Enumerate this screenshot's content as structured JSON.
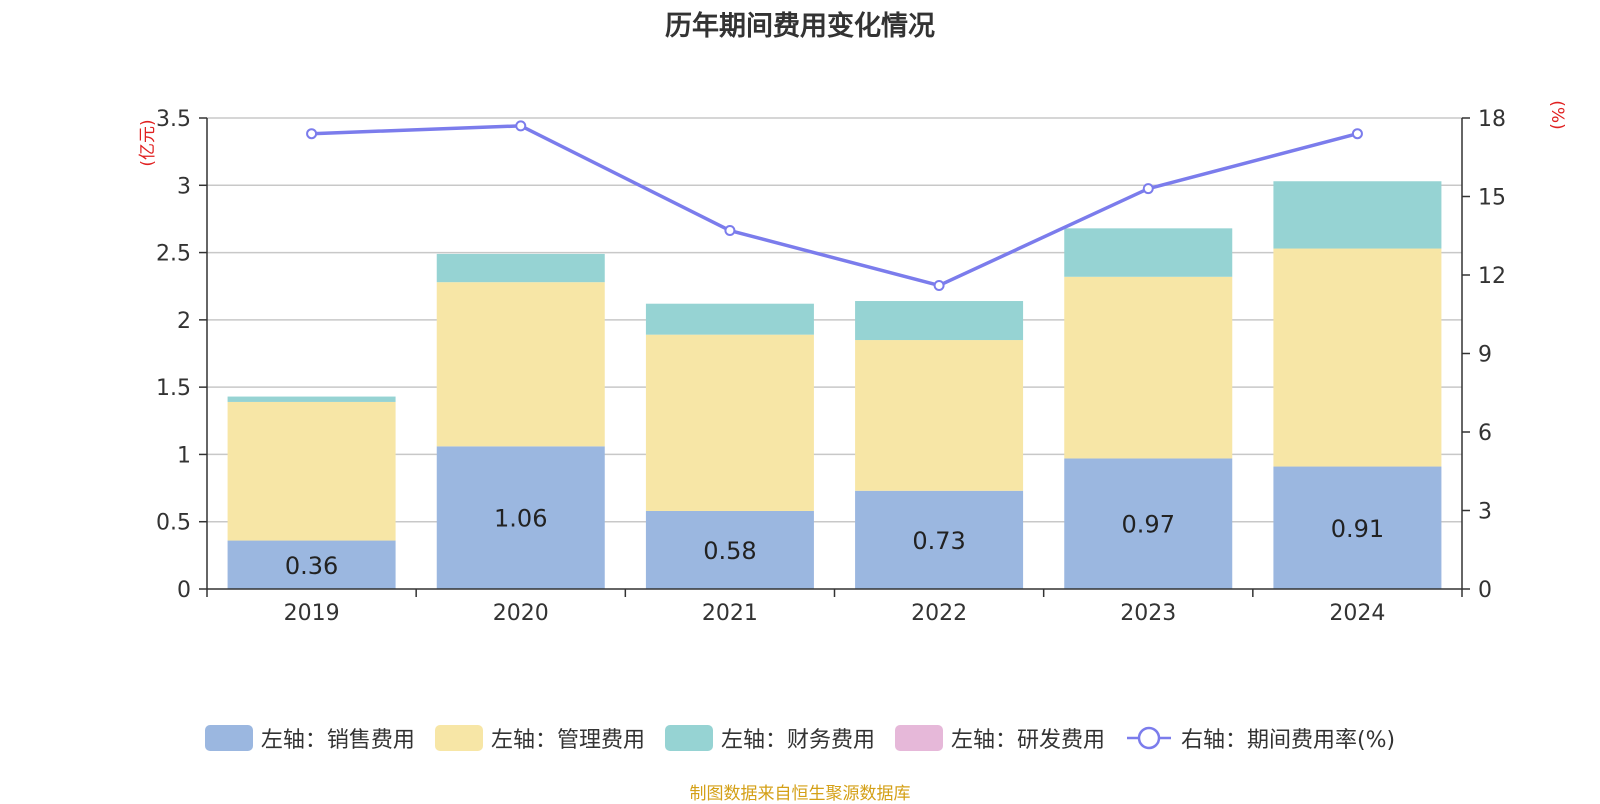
{
  "title": "历年期间费用变化情况",
  "source": "制图数据来自恒生聚源数据库",
  "colors": {
    "sales": "#9bb7e0",
    "admin": "#f7e6a6",
    "finance": "#96d3d3",
    "rd": "#e6b8d9",
    "line": "#7b7cec",
    "axis_unit": "#e02020",
    "source": "#d4a017"
  },
  "legend": [
    {
      "label": "左轴：销售费用",
      "color": "#9bb7e0",
      "kind": "bar"
    },
    {
      "label": "左轴：管理费用",
      "color": "#f7e6a6",
      "kind": "bar"
    },
    {
      "label": "左轴：财务费用",
      "color": "#96d3d3",
      "kind": "bar"
    },
    {
      "label": "左轴：研发费用",
      "color": "#e6b8d9",
      "kind": "bar"
    },
    {
      "label": "右轴：期间费用率(%)",
      "color": "#7b7cec",
      "kind": "line"
    }
  ],
  "chart_data": {
    "type": "bar",
    "stacked": true,
    "categories": [
      "2019",
      "2020",
      "2021",
      "2022",
      "2023",
      "2024"
    ],
    "series": [
      {
        "name": "左轴：销售费用",
        "axis": "left",
        "values": [
          0.36,
          1.06,
          0.58,
          0.73,
          0.97,
          0.91
        ],
        "labels": [
          "0.36",
          "1.06",
          "0.58",
          "0.73",
          "0.97",
          "0.91"
        ]
      },
      {
        "name": "左轴：管理费用",
        "axis": "left",
        "values": [
          1.03,
          1.22,
          1.31,
          1.12,
          1.35,
          1.62
        ]
      },
      {
        "name": "左轴：财务费用",
        "axis": "left",
        "values": [
          0.04,
          0.21,
          0.23,
          0.29,
          0.36,
          0.5
        ]
      },
      {
        "name": "左轴：研发费用",
        "axis": "left",
        "values": [
          0,
          0,
          0,
          0,
          0,
          0
        ]
      },
      {
        "name": "右轴：期间费用率(%)",
        "axis": "right",
        "type": "line",
        "values": [
          17.4,
          17.7,
          13.7,
          11.6,
          15.3,
          17.4
        ]
      }
    ],
    "left_axis": {
      "unit": "(亿元)",
      "ylim": [
        0,
        3.5
      ],
      "ticks": [
        "0",
        "0.5",
        "1",
        "1.5",
        "2",
        "2.5",
        "3",
        "3.5"
      ]
    },
    "right_axis": {
      "unit": "(%)",
      "ylim": [
        0,
        18
      ],
      "ticks": [
        "0",
        "3",
        "6",
        "9",
        "12",
        "15",
        "18"
      ]
    },
    "grid": true,
    "legend_position": "bottom"
  }
}
